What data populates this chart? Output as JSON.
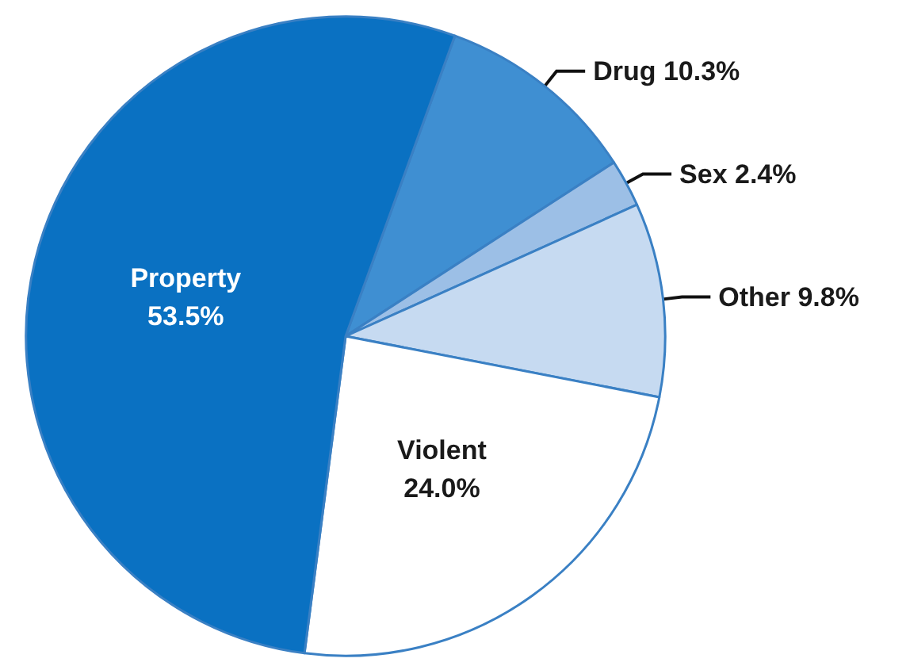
{
  "chart_data": {
    "type": "pie",
    "categories": [
      "Drug",
      "Sex",
      "Other",
      "Violent",
      "Property"
    ],
    "values": [
      10.3,
      2.4,
      9.8,
      24.0,
      53.5
    ],
    "value_labels": [
      "10.3%",
      "2.4%",
      "9.8%",
      "24.0%",
      "53.5%"
    ],
    "colors": [
      "#3f8fd2",
      "#9cbfe6",
      "#c6daf1",
      "#ffffff",
      "#0a71c2"
    ],
    "data_labels": true,
    "legend": false
  }
}
